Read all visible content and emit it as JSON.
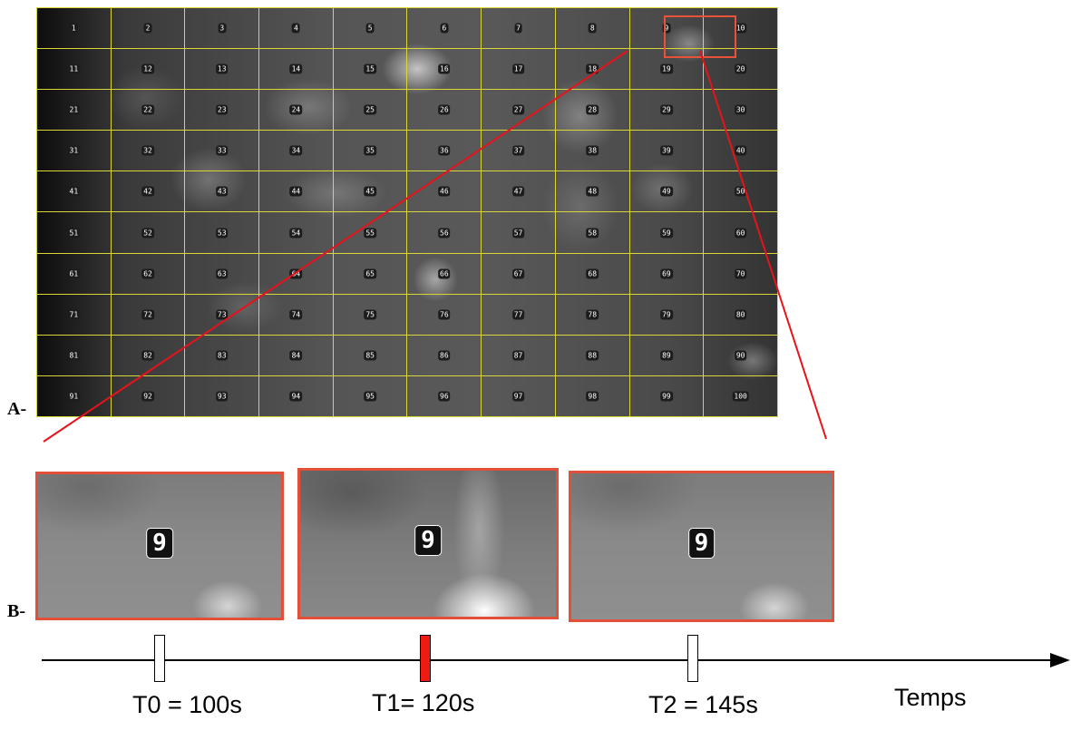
{
  "panel_a": {
    "label": "A-",
    "cells": [
      "1",
      "2",
      "3",
      "4",
      "5",
      "6",
      "7",
      "8",
      "9",
      "10",
      "11",
      "12",
      "13",
      "14",
      "15",
      "16",
      "17",
      "18",
      "19",
      "20",
      "21",
      "22",
      "23",
      "24",
      "25",
      "26",
      "27",
      "28",
      "29",
      "30",
      "31",
      "32",
      "33",
      "34",
      "35",
      "36",
      "37",
      "38",
      "39",
      "40",
      "41",
      "42",
      "43",
      "44",
      "45",
      "46",
      "47",
      "48",
      "49",
      "50",
      "51",
      "52",
      "53",
      "54",
      "55",
      "56",
      "57",
      "58",
      "59",
      "60",
      "61",
      "62",
      "63",
      "64",
      "65",
      "66",
      "67",
      "68",
      "69",
      "70",
      "71",
      "72",
      "73",
      "74",
      "75",
      "76",
      "77",
      "78",
      "79",
      "80",
      "81",
      "82",
      "83",
      "84",
      "85",
      "86",
      "87",
      "88",
      "89",
      "90",
      "91",
      "92",
      "93",
      "94",
      "95",
      "96",
      "97",
      "98",
      "99",
      "100"
    ],
    "highlighted_cell": "9",
    "grid_color": "#d9d63a",
    "highlight_color": "#e8513a"
  },
  "panel_b": {
    "label": "B-",
    "thumbnails": [
      {
        "cell": "9",
        "state": "rest"
      },
      {
        "cell": "9",
        "state": "active"
      },
      {
        "cell": "9",
        "state": "rest"
      }
    ]
  },
  "timeline": {
    "points": [
      {
        "label": "T0 = 100s",
        "highlight": false
      },
      {
        "label": "T1= 120s",
        "highlight": true
      },
      {
        "label": "T2 = 145s",
        "highlight": false
      }
    ],
    "axis_label": "Temps",
    "highlight_color": "#ee1a14"
  }
}
